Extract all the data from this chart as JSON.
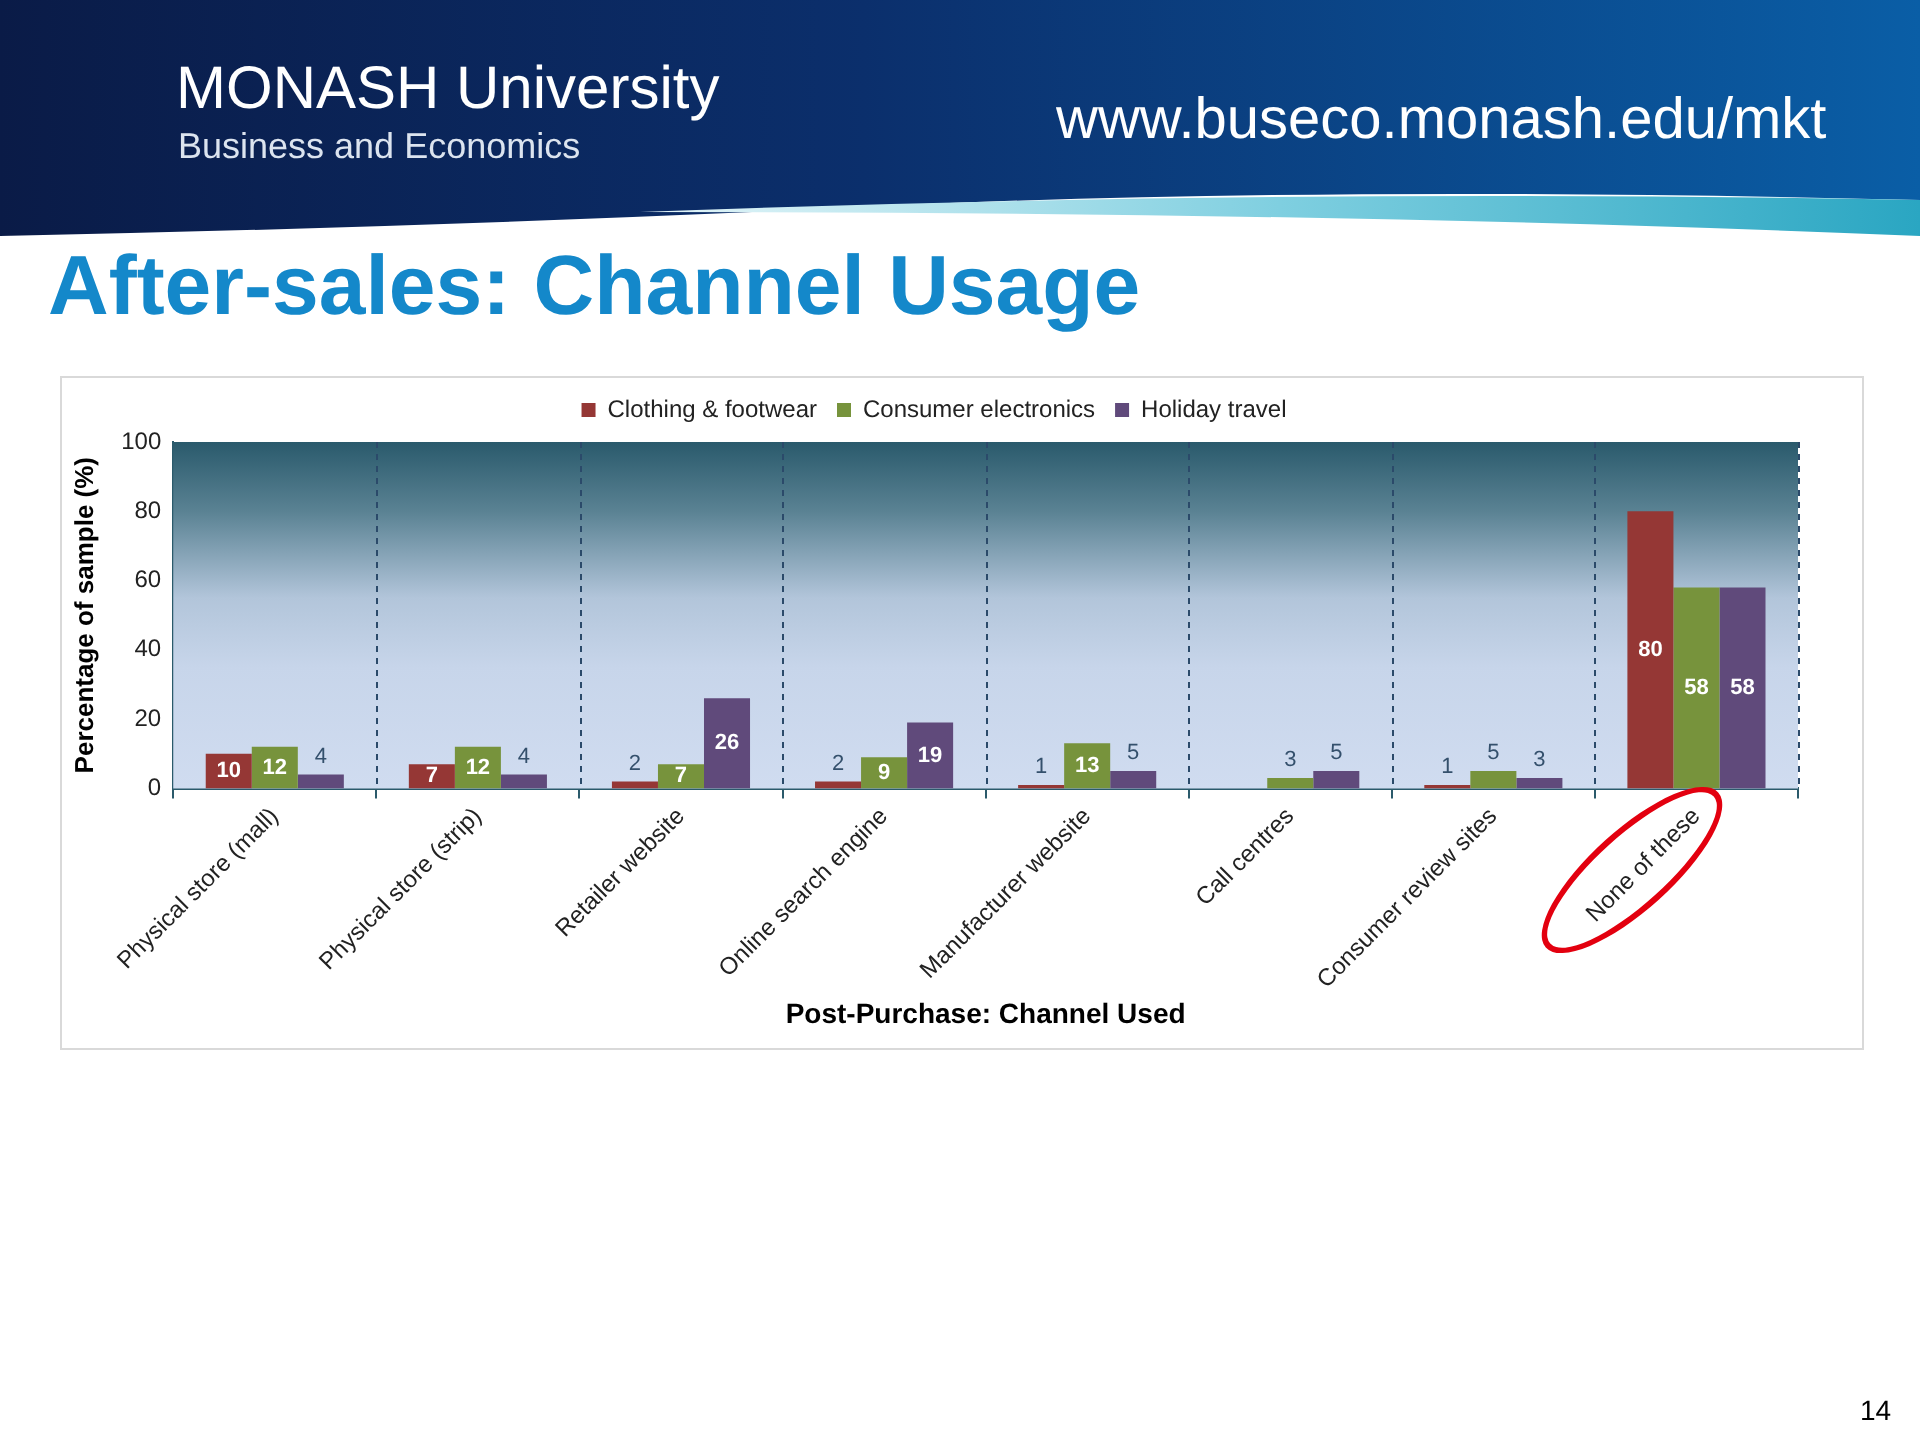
{
  "chart_data": {
    "type": "bar",
    "title": "After-sales: Channel Usage",
    "xlabel": "Post-Purchase: Channel Used",
    "ylabel": "Percentage of sample (%)",
    "annotations": [
      "MONASH University",
      "Business and Economics",
      "www.buseco.monash.edu/mkt",
      "14"
    ],
    "categories": [
      "Physical store (mall)",
      "Physical store (strip)",
      "Retailer website",
      "Online search engine",
      "Manufacturer website",
      "Call centres",
      "Consumer review sites",
      "None of these"
    ],
    "series": [
      {
        "name": "Clothing & footwear",
        "color": "#953735",
        "values": [
          10,
          7,
          2,
          2,
          1,
          null,
          1,
          80
        ]
      },
      {
        "name": "Consumer electronics",
        "color": "#77933c",
        "values": [
          12,
          12,
          7,
          9,
          13,
          3,
          5,
          58
        ]
      },
      {
        "name": "Holiday travel",
        "color": "#604a7b",
        "values": [
          4,
          4,
          26,
          19,
          5,
          5,
          3,
          58
        ]
      }
    ],
    "ylim": [
      0,
      100
    ],
    "yticks": [
      0,
      20,
      40,
      60,
      80,
      100
    ],
    "grid": "x",
    "legend": "top",
    "data_labels": true
  }
}
